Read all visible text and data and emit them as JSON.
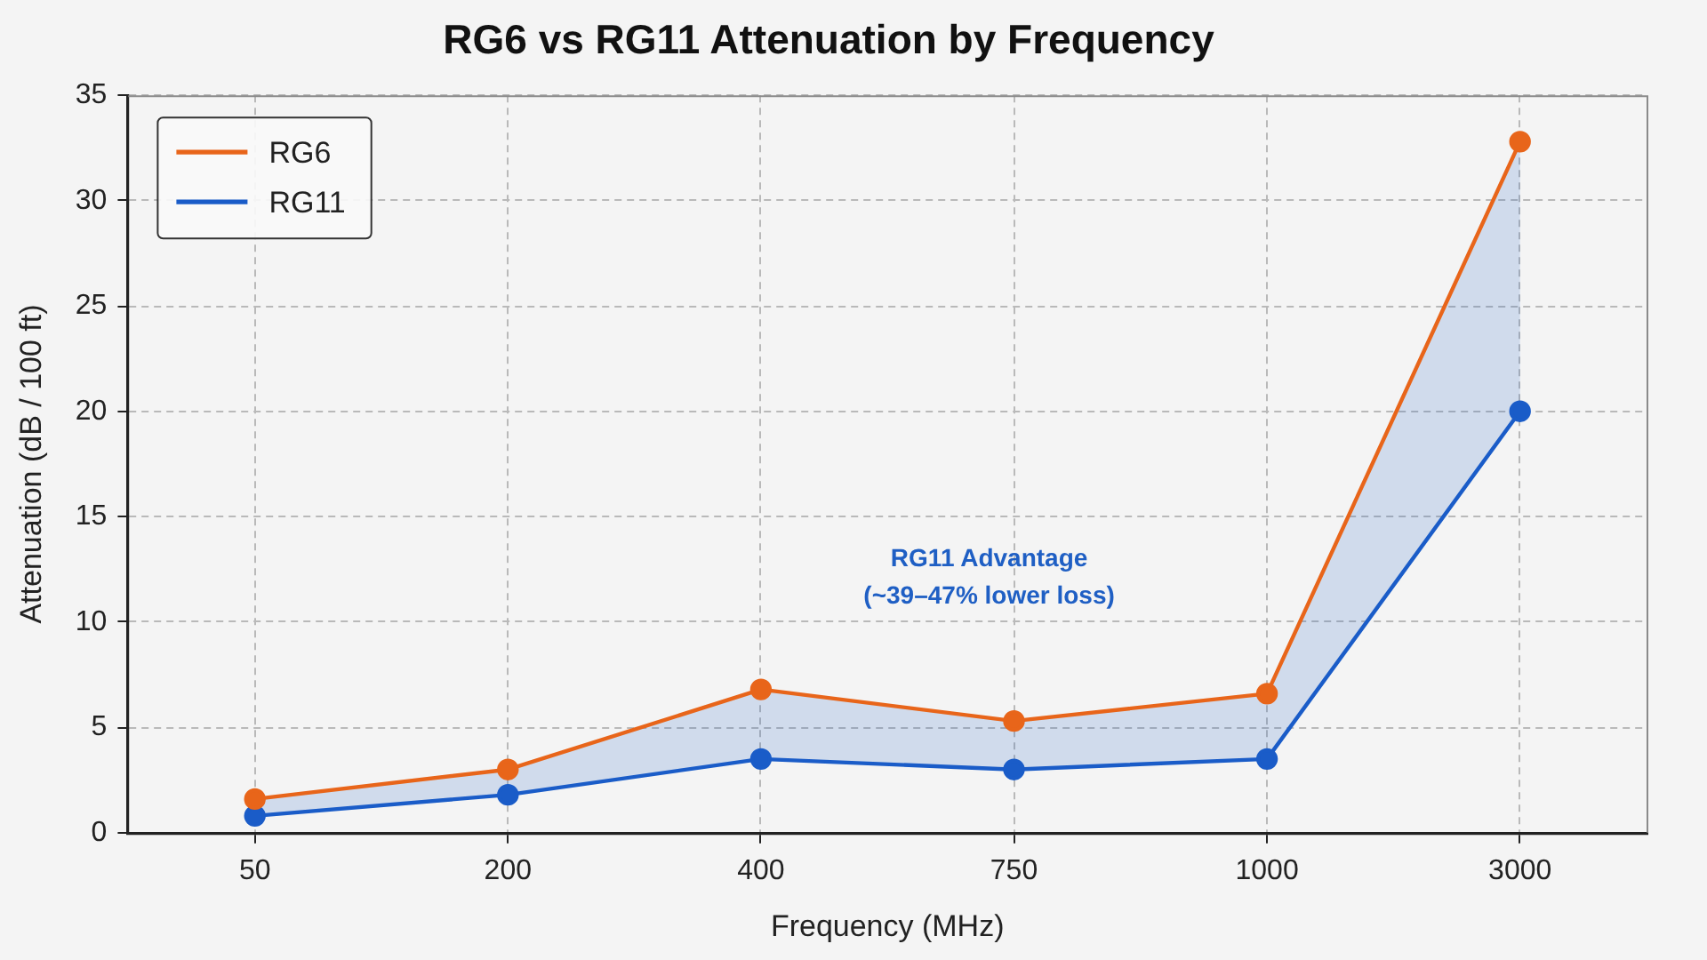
{
  "chart_data": {
    "type": "line",
    "title": "RG6 vs RG11 Attenuation by Frequency",
    "xlabel": "Frequency (MHz)",
    "ylabel": "Attenuation (dB / 100 ft)",
    "categories": [
      "50",
      "200",
      "400",
      "750",
      "1000",
      "3000"
    ],
    "series": [
      {
        "name": "RG6",
        "color": "#e8651a",
        "values": [
          1.6,
          3.0,
          6.8,
          5.3,
          6.6,
          32.8
        ]
      },
      {
        "name": "RG11",
        "color": "#1a5cc8",
        "values": [
          0.8,
          1.8,
          3.5,
          3.0,
          3.5,
          20.0
        ],
        "lower": [
          0.8,
          1.8,
          3.5,
          3.0,
          3.5,
          20.0
        ],
        "upper": [
          1.6,
          3.0,
          6.8,
          5.3,
          6.6,
          32.8
        ]
      }
    ],
    "ylim": [
      0,
      35
    ],
    "yticks": [
      0,
      5,
      10,
      15,
      20,
      25,
      30,
      35
    ],
    "grid": true,
    "legend": "top left",
    "marker": "circle",
    "line_style": "solid",
    "annotations": [
      "RG11 Advantage\n(~39–47% lower loss)"
    ]
  }
}
